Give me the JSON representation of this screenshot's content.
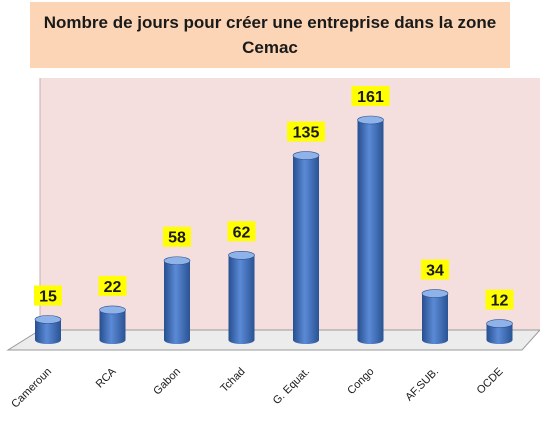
{
  "chart_data": {
    "type": "bar",
    "title": "Nombre de jours pour créer une entreprise dans la zone Cemac",
    "categories": [
      "Cameroun",
      "RCA",
      "Gabon",
      "Tchad",
      "G. Equat.",
      "Congo",
      "AF.SUB.",
      "OCDE"
    ],
    "values": [
      15,
      22,
      58,
      62,
      135,
      161,
      34,
      12
    ],
    "ylim": [
      0,
      175
    ],
    "grid": false,
    "legend": "none",
    "colors": {
      "bar": "#3f6fbf",
      "bar_dark": "#274f8f",
      "bar_light": "#8fb3e8",
      "label_bg": "#ffff00",
      "plot_bg": "#f5dede",
      "title_bg": "#fbd5b5"
    }
  }
}
